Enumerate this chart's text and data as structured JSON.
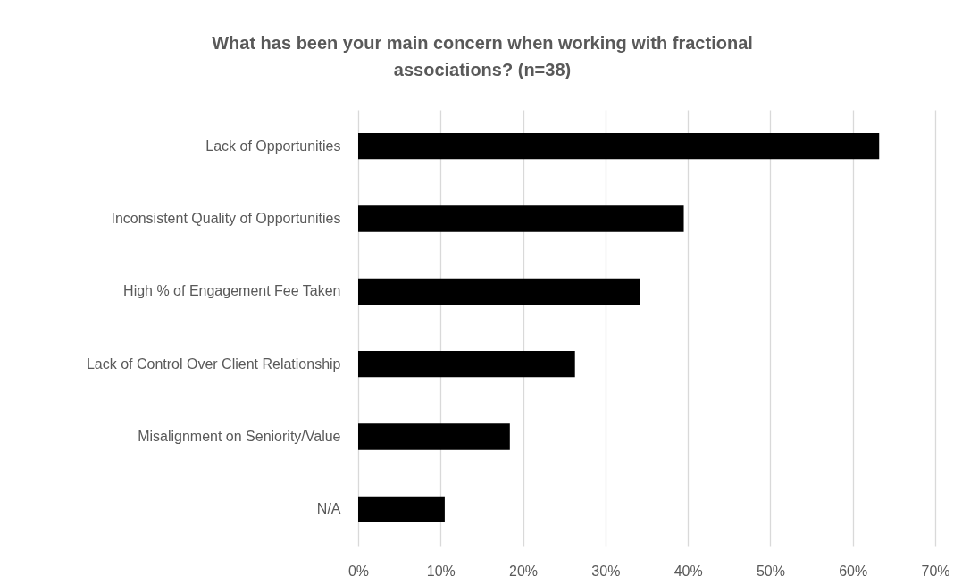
{
  "chart_data": {
    "type": "bar",
    "orientation": "horizontal",
    "title": "What has been your main concern when working with fractional associations? (n=38)",
    "categories": [
      "Lack of Opportunities",
      "Inconsistent Quality of Opportunities",
      "High % of Engagement Fee Taken",
      "Lack of Control Over Client Relationship",
      "Misalignment on Seniority/Value",
      "N/A"
    ],
    "values": [
      63.2,
      39.5,
      34.2,
      26.3,
      18.4,
      10.5
    ],
    "color": "#000000",
    "xlim": [
      0,
      70
    ],
    "xticks": [
      {
        "value": 0,
        "label": "0%"
      },
      {
        "value": 10,
        "label": "10%"
      },
      {
        "value": 20,
        "label": "20%"
      },
      {
        "value": 30,
        "label": "30%"
      },
      {
        "value": 40,
        "label": "40%"
      },
      {
        "value": 50,
        "label": "50%"
      },
      {
        "value": 60,
        "label": "60%"
      },
      {
        "value": 70,
        "label": "70%"
      }
    ],
    "grid": "x"
  }
}
